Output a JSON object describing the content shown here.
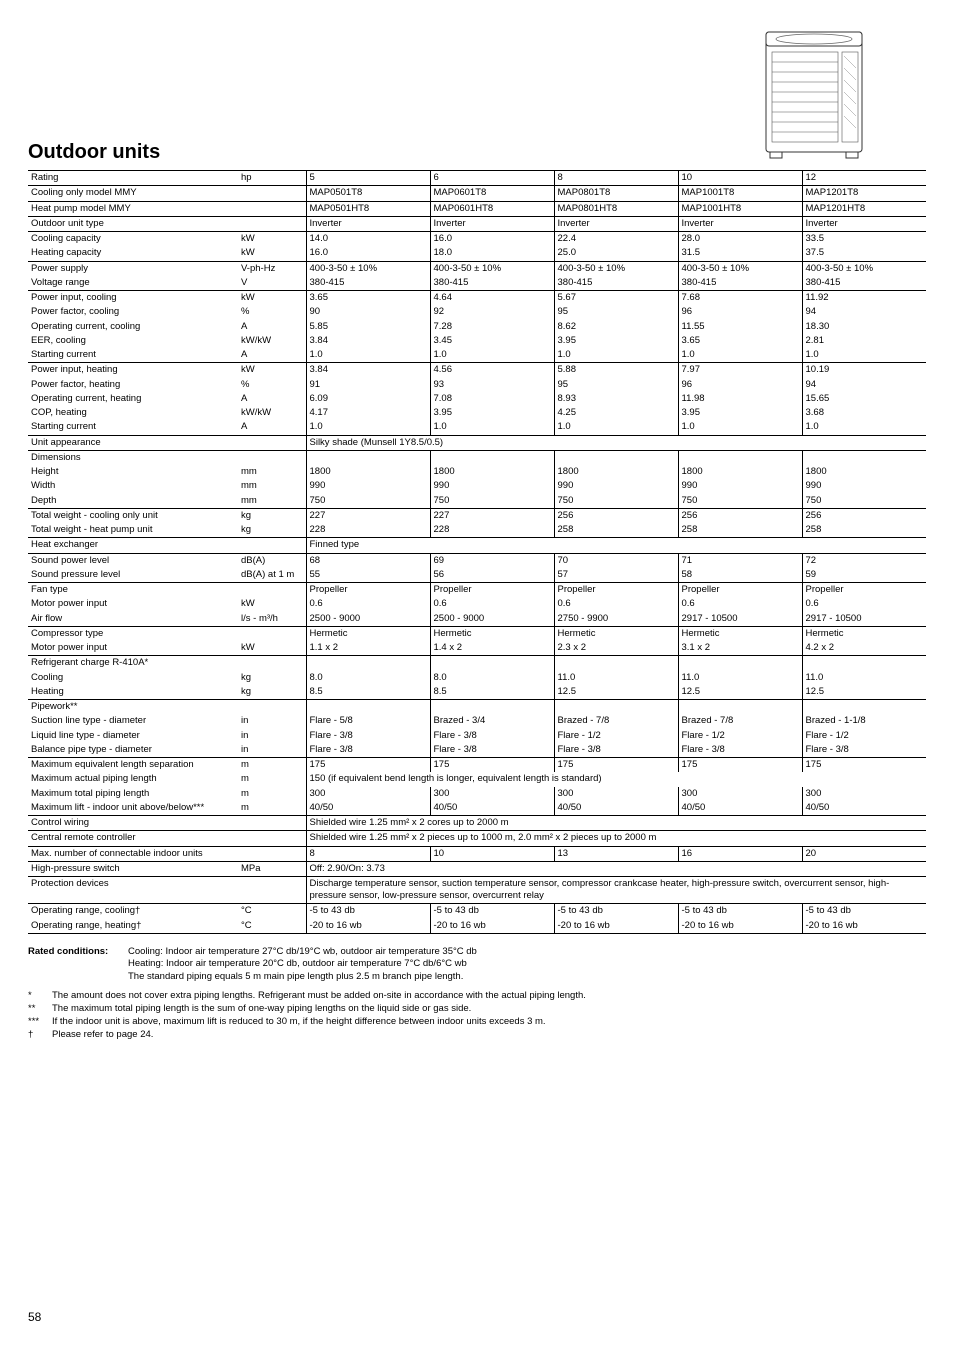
{
  "page_number": "58",
  "title": "Outdoor units",
  "image_alt": "Outdoor air conditioning condenser unit line drawing",
  "colors": {
    "text": "#000000",
    "background": "#ffffff",
    "border": "#000000"
  },
  "table": {
    "header": {
      "rating": "Rating",
      "unit_col": "hp",
      "c5": "5",
      "c6": "6",
      "c8": "8",
      "c10": "10",
      "c12": "12"
    },
    "rows": [
      {
        "label": "Cooling only model MMY",
        "unit": "",
        "bold": true,
        "v": [
          "MAP0501T8",
          "MAP0601T8",
          "MAP0801T8",
          "MAP1001T8",
          "MAP1201T8"
        ],
        "vbold": true
      },
      {
        "label": "Heat pump model MMY",
        "unit": "",
        "bold": true,
        "v": [
          "MAP0501HT8",
          "MAP0601HT8",
          "MAP0801HT8",
          "MAP1001HT8",
          "MAP1201HT8"
        ],
        "vbold": true
      },
      {
        "label": "Outdoor unit type",
        "unit": "",
        "bold": true,
        "v": [
          "Inverter",
          "Inverter",
          "Inverter",
          "Inverter",
          "Inverter"
        ]
      },
      {
        "label": "Cooling capacity",
        "unit": "kW",
        "bold": true,
        "v": [
          "14.0",
          "16.0",
          "22.4",
          "28.0",
          "33.5"
        ]
      },
      {
        "label": "Heating capacity",
        "unit": "kW",
        "bold": true,
        "noborder": true,
        "v": [
          "16.0",
          "18.0",
          "25.0",
          "31.5",
          "37.5"
        ]
      },
      {
        "label": "Power supply",
        "unit": "V-ph-Hz",
        "v": [
          "400-3-50 ± 10%",
          "400-3-50 ± 10%",
          "400-3-50 ± 10%",
          "400-3-50 ± 10%",
          "400-3-50 ± 10%"
        ]
      },
      {
        "label": "Voltage range",
        "unit": "V",
        "noborder": true,
        "v": [
          "380-415",
          "380-415",
          "380-415",
          "380-415",
          "380-415"
        ]
      },
      {
        "label": "Power input, cooling",
        "unit": "kW",
        "v": [
          "3.65",
          "4.64",
          "5.67",
          "7.68",
          "11.92"
        ]
      },
      {
        "label": "Power factor, cooling",
        "unit": "%",
        "noborder": true,
        "v": [
          "90",
          "92",
          "95",
          "96",
          "94"
        ]
      },
      {
        "label": "Operating current, cooling",
        "unit": "A",
        "noborder": true,
        "v": [
          "5.85",
          "7.28",
          "8.62",
          "11.55",
          "18.30"
        ]
      },
      {
        "label": "EER, cooling",
        "unit": "kW/kW",
        "noborder": true,
        "v": [
          "3.84",
          "3.45",
          "3.95",
          "3.65",
          "2.81"
        ]
      },
      {
        "label": "Starting current",
        "unit": "A",
        "noborder": true,
        "v": [
          "1.0",
          "1.0",
          "1.0",
          "1.0",
          "1.0"
        ]
      },
      {
        "label": "Power input, heating",
        "unit": "kW",
        "v": [
          "3.84",
          "4.56",
          "5.88",
          "7.97",
          "10.19"
        ]
      },
      {
        "label": "Power factor, heating",
        "unit": "%",
        "noborder": true,
        "v": [
          "91",
          "93",
          "95",
          "96",
          "94"
        ]
      },
      {
        "label": "Operating current, heating",
        "unit": "A",
        "noborder": true,
        "v": [
          "6.09",
          "7.08",
          "8.93",
          "11.98",
          "15.65"
        ]
      },
      {
        "label": "COP, heating",
        "unit": "kW/kW",
        "noborder": true,
        "v": [
          "4.17",
          "3.95",
          "4.25",
          "3.95",
          "3.68"
        ]
      },
      {
        "label": "Starting current",
        "unit": "A",
        "noborder": true,
        "v": [
          "1.0",
          "1.0",
          "1.0",
          "1.0",
          "1.0"
        ]
      },
      {
        "label": "Unit appearance",
        "unit": "",
        "bold": true,
        "span": "Silky shade (Munsell 1Y8.5/0.5)"
      },
      {
        "label": "Dimensions",
        "unit": "",
        "bold": true,
        "v": [
          "",
          "",
          "",
          "",
          ""
        ]
      },
      {
        "label": "Height",
        "unit": "mm",
        "noborder": true,
        "v": [
          "1800",
          "1800",
          "1800",
          "1800",
          "1800"
        ]
      },
      {
        "label": "Width",
        "unit": "mm",
        "noborder": true,
        "v": [
          "990",
          "990",
          "990",
          "990",
          "990"
        ]
      },
      {
        "label": "Depth",
        "unit": "mm",
        "noborder": true,
        "v": [
          "750",
          "750",
          "750",
          "750",
          "750"
        ]
      },
      {
        "label": "Total weight - cooling only unit",
        "unit": "kg",
        "bold": true,
        "v": [
          "227",
          "227",
          "256",
          "256",
          "256"
        ]
      },
      {
        "label": "Total weight - heat pump unit",
        "unit": "kg",
        "bold": true,
        "noborder": true,
        "v": [
          "228",
          "228",
          "258",
          "258",
          "258"
        ]
      },
      {
        "label": "Heat exchanger",
        "unit": "",
        "bold": true,
        "span": "Finned type"
      },
      {
        "label": "Sound power level",
        "unit": "dB(A)",
        "bold": true,
        "v": [
          "68",
          "69",
          "70",
          "71",
          "72"
        ]
      },
      {
        "label": "Sound pressure level",
        "unit": "dB(A) at 1 m",
        "bold": true,
        "noborder": true,
        "v": [
          "55",
          "56",
          "57",
          "58",
          "59"
        ]
      },
      {
        "label": "Fan type",
        "unit": "",
        "bold": true,
        "v": [
          "Propeller",
          "Propeller",
          "Propeller",
          "Propeller",
          "Propeller"
        ]
      },
      {
        "label": "Motor power input",
        "unit": "kW",
        "noborder": true,
        "v": [
          "0.6",
          "0.6",
          "0.6",
          "0.6",
          "0.6"
        ]
      },
      {
        "label": "Air flow",
        "unit": "l/s - m³/h",
        "noborder": true,
        "v": [
          "2500 - 9000",
          "2500 - 9000",
          "2750 - 9900",
          "2917 - 10500",
          "2917 - 10500"
        ]
      },
      {
        "label": "Compressor type",
        "unit": "",
        "bold": true,
        "v": [
          "Hermetic",
          "Hermetic",
          "Hermetic",
          "Hermetic",
          "Hermetic"
        ]
      },
      {
        "label": "Motor power input",
        "unit": "kW",
        "noborder": true,
        "v": [
          "1.1 x 2",
          "1.4 x 2",
          "2.3 x 2",
          "3.1 x 2",
          "4.2 x 2"
        ]
      },
      {
        "label": "Refrigerant charge R-410A*",
        "unit": "",
        "bold": true,
        "v": [
          "",
          "",
          "",
          "",
          ""
        ]
      },
      {
        "label": "Cooling",
        "unit": "kg",
        "noborder": true,
        "v": [
          "8.0",
          "8.0",
          "11.0",
          "11.0",
          "11.0"
        ]
      },
      {
        "label": "Heating",
        "unit": "kg",
        "noborder": true,
        "v": [
          "8.5",
          "8.5",
          "12.5",
          "12.5",
          "12.5"
        ]
      },
      {
        "label": "Pipework**",
        "unit": "",
        "bold": true,
        "v": [
          "",
          "",
          "",
          "",
          ""
        ]
      },
      {
        "label": "Suction line type - diameter",
        "unit": "in",
        "noborder": true,
        "v": [
          "Flare - 5/8",
          "Brazed - 3/4",
          "Brazed - 7/8",
          "Brazed - 7/8",
          "Brazed - 1-1/8"
        ]
      },
      {
        "label": "Liquid line type - diameter",
        "unit": "in",
        "noborder": true,
        "v": [
          "Flare - 3/8",
          "Flare - 3/8",
          "Flare - 1/2",
          "Flare - 1/2",
          "Flare - 1/2"
        ]
      },
      {
        "label": "Balance pipe type - diameter",
        "unit": "in",
        "noborder": true,
        "v": [
          "Flare - 3/8",
          "Flare - 3/8",
          "Flare - 3/8",
          "Flare - 3/8",
          "Flare - 3/8"
        ]
      },
      {
        "label": "Maximum equivalent length separation",
        "unit": "m",
        "v": [
          "175",
          "175",
          "175",
          "175",
          "175"
        ]
      },
      {
        "label": "Maximum actual piping length",
        "unit": "m",
        "noborder": true,
        "span": "150 (if equivalent bend length is longer, equivalent length is standard)"
      },
      {
        "label": "Maximum total piping length",
        "unit": "m",
        "noborder": true,
        "v": [
          "300",
          "300",
          "300",
          "300",
          "300"
        ]
      },
      {
        "label": "Maximum lift - indoor unit above/below***",
        "unit": "m",
        "noborder": true,
        "v": [
          "40/50",
          "40/50",
          "40/50",
          "40/50",
          "40/50"
        ]
      },
      {
        "label": "Control wiring",
        "unit": "",
        "bold": true,
        "span": "Shielded wire 1.25 mm² x 2 cores up to 2000 m"
      },
      {
        "label": "Central remote controller",
        "unit": "",
        "bold": true,
        "span": "Shielded wire 1.25 mm² x 2 pieces up to 1000 m, 2.0 mm² x 2 pieces up to 2000 m"
      },
      {
        "label": "Max. number of connectable indoor units",
        "unit": "",
        "bold": true,
        "v": [
          "8",
          "10",
          "13",
          "16",
          "20"
        ]
      },
      {
        "label": "High-pressure switch",
        "unit": "MPa",
        "bold": true,
        "span": "Off: 2.90/On: 3.73"
      },
      {
        "label": "Protection devices",
        "unit": "",
        "bold": true,
        "span": "Discharge temperature sensor, suction temperature sensor, compressor crankcase heater, high-pressure switch, overcurrent sensor, high-pressure sensor, low-pressure sensor, overcurrent relay",
        "multiline": true
      },
      {
        "label": "Operating range, cooling†",
        "unit": "°C",
        "bold": true,
        "v": [
          "-5 to 43 db",
          "-5 to 43 db",
          "-5 to 43 db",
          "-5 to 43 db",
          "-5 to 43 db"
        ]
      },
      {
        "label": "Operating range, heating†",
        "unit": "°C",
        "bold": true,
        "noborder": true,
        "v": [
          "-20 to 16 wb",
          "-20 to 16 wb",
          "-20 to 16 wb",
          "-20 to 16 wb",
          "-20 to 16 wb"
        ]
      }
    ]
  },
  "footnotes": {
    "conditions_label": "Rated conditions:",
    "conditions": [
      "Cooling: Indoor air temperature 27°C db/19°C wb, outdoor air temperature 35°C db",
      "Heating: Indoor air temperature 20°C db, outdoor air temperature 7°C db/6°C wb",
      "The standard piping equals 5 m main pipe length plus 2.5 m branch pipe length."
    ],
    "notes": [
      {
        "sym": "*",
        "text": "The amount does not cover extra piping lengths. Refrigerant must be added on-site in accordance with the actual piping length."
      },
      {
        "sym": "**",
        "text": "The maximum total piping length is the sum of one-way piping lengths on the liquid side or gas side."
      },
      {
        "sym": "***",
        "text": "If the indoor unit is above, maximum lift is reduced to 30 m, if the height difference between indoor units exceeds 3 m."
      },
      {
        "sym": "†",
        "text": "Please refer to page 24."
      }
    ]
  }
}
